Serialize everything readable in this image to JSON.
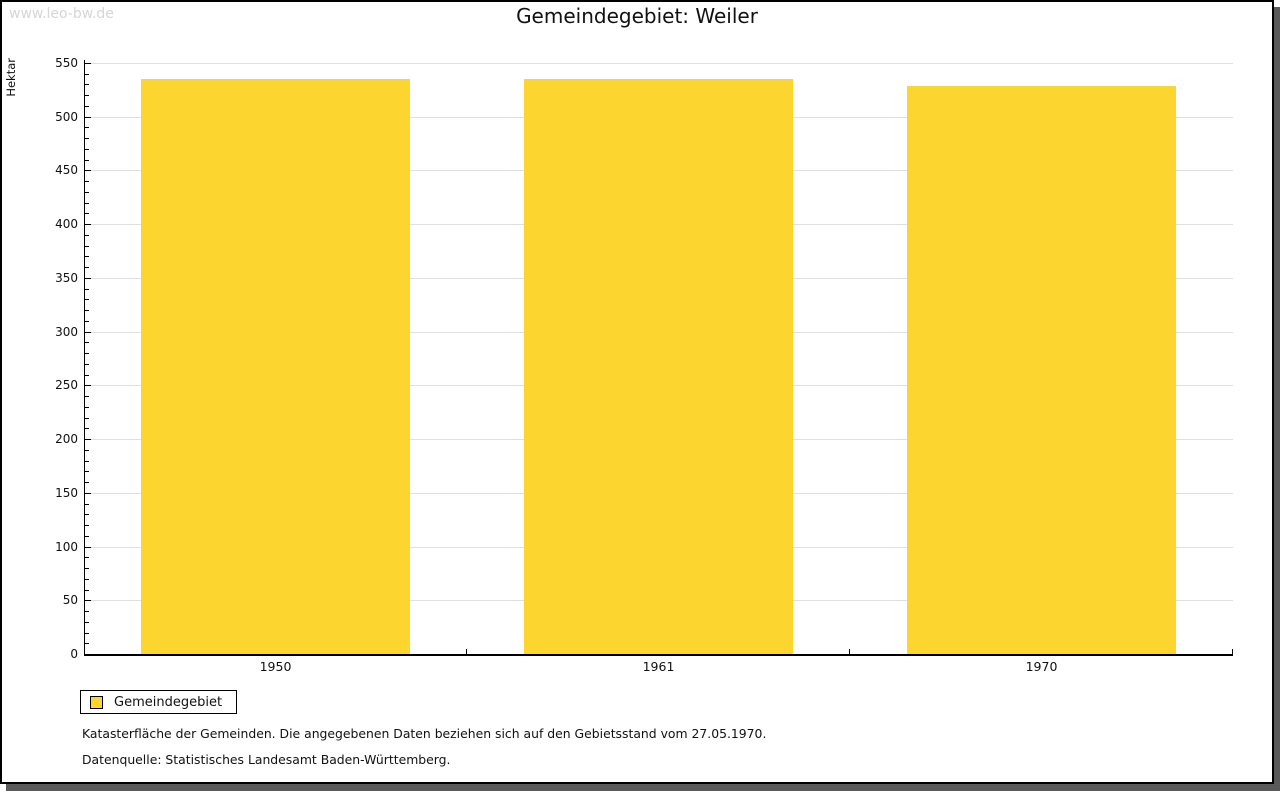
{
  "page": {
    "watermark": "www.leo-bw.de",
    "title": "Gemeindegebiet: Weiler"
  },
  "chart_data": {
    "type": "bar",
    "title": "Gemeindegebiet: Weiler",
    "ylabel": "Hektar",
    "categories": [
      "1950",
      "1961",
      "1970"
    ],
    "series": [
      {
        "name": "Gemeindegebiet",
        "values": [
          535,
          535,
          529
        ]
      }
    ],
    "ylim": [
      0,
      550
    ],
    "ytick_major": 50,
    "ytick_minor": 10,
    "ytick_labels": [
      "0",
      "50",
      "100",
      "150",
      "200",
      "250",
      "300",
      "350",
      "400",
      "450",
      "500",
      "550"
    ],
    "grid": true,
    "legend_position": "bottom-left",
    "colors": {
      "bar": "#FDD52F",
      "gridline": "#e0e0e0",
      "axis": "#000000"
    }
  },
  "legend": {
    "label": "Gemeindegebiet"
  },
  "footnotes": [
    "Katasterfläche der Gemeinden. Die angegebenen Daten beziehen sich auf den Gebietsstand vom 27.05.1970.",
    "Datenquelle: Statistisches Landesamt Baden-Württemberg."
  ]
}
